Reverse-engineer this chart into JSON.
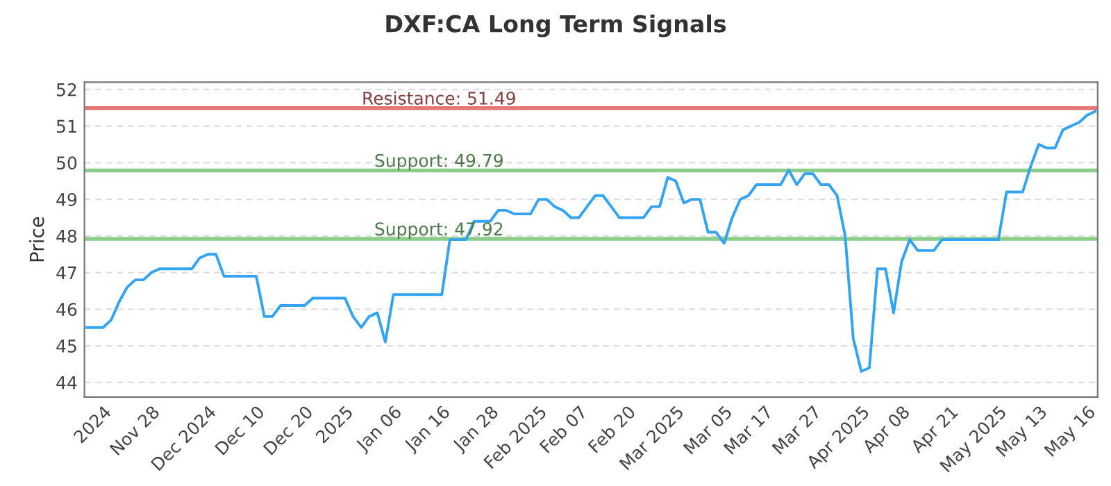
{
  "chart_data": {
    "type": "line",
    "title": "DXF:CA Long Term Signals",
    "ylabel": "Price",
    "categories": [
      null,
      null,
      "2024",
      null,
      null,
      null,
      null,
      null,
      "Nov 28",
      null,
      null,
      null,
      null,
      null,
      null,
      "Dec 2024",
      null,
      null,
      null,
      null,
      null,
      "Dec 10",
      null,
      null,
      null,
      null,
      null,
      "Dec 20",
      null,
      null,
      null,
      null,
      "2025",
      null,
      null,
      null,
      null,
      null,
      "Jan 06",
      null,
      null,
      null,
      null,
      null,
      "Jan 16",
      null,
      null,
      null,
      null,
      null,
      "Jan 28",
      null,
      null,
      null,
      null,
      null,
      "Feb 2025",
      null,
      null,
      null,
      null,
      "Feb 07",
      null,
      null,
      null,
      null,
      null,
      "Feb 20",
      null,
      null,
      null,
      null,
      null,
      "Mar 2025",
      null,
      null,
      null,
      null,
      null,
      "Mar 05",
      null,
      null,
      null,
      null,
      "Mar 17",
      null,
      null,
      null,
      null,
      null,
      "Mar 27",
      null,
      null,
      null,
      null,
      null,
      "Apr 2025",
      null,
      null,
      null,
      null,
      "Apr 08",
      null,
      null,
      null,
      null,
      null,
      "Apr 21",
      null,
      null,
      null,
      null,
      null,
      "May 2025",
      null,
      null,
      null,
      null,
      "May 13",
      null,
      null,
      null,
      null,
      null,
      "May 16",
      null
    ],
    "series": [
      {
        "color": "#33a3f4",
        "values": [
          45.5,
          45.5,
          45.5,
          45.7,
          46.2,
          46.6,
          46.8,
          46.8,
          47.0,
          47.1,
          47.1,
          47.1,
          47.1,
          47.1,
          47.4,
          47.5,
          47.5,
          46.9,
          46.9,
          46.9,
          46.9,
          46.9,
          45.8,
          45.8,
          46.1,
          46.1,
          46.1,
          46.1,
          46.3,
          46.3,
          46.3,
          46.3,
          46.3,
          45.8,
          45.5,
          45.8,
          45.9,
          45.1,
          46.4,
          46.4,
          46.4,
          46.4,
          46.4,
          46.4,
          46.4,
          47.9,
          47.9,
          47.9,
          48.4,
          48.4,
          48.4,
          48.7,
          48.7,
          48.6,
          48.6,
          48.6,
          49.0,
          49.0,
          48.8,
          48.7,
          48.5,
          48.5,
          48.8,
          49.1,
          49.1,
          48.8,
          48.5,
          48.5,
          48.5,
          48.5,
          48.8,
          48.8,
          49.6,
          49.5,
          48.9,
          49.0,
          49.0,
          48.1,
          48.1,
          47.8,
          48.5,
          49.0,
          49.1,
          49.4,
          49.4,
          49.4,
          49.4,
          49.8,
          49.4,
          49.7,
          49.7,
          49.4,
          49.4,
          49.1,
          48.0,
          45.2,
          44.3,
          44.4,
          47.1,
          47.1,
          45.9,
          47.3,
          47.9,
          47.6,
          47.6,
          47.6,
          47.9,
          47.9,
          47.9,
          47.9,
          47.9,
          47.9,
          47.9,
          47.9,
          49.2,
          49.2,
          49.2,
          49.9,
          50.5,
          50.4,
          50.4,
          50.9,
          51.0,
          51.1,
          51.3,
          51.4
        ]
      }
    ],
    "ylim": [
      43.6,
      52.2
    ],
    "yticks": [
      44,
      45,
      46,
      47,
      48,
      49,
      50,
      51,
      52
    ],
    "grid": "y",
    "marker": "none",
    "line_style": "solid",
    "ref_lines": [
      {
        "axis": "y",
        "value": 51.49,
        "label": "Resistance: 51.49",
        "color": "#e06666"
      },
      {
        "axis": "y",
        "value": 49.79,
        "label": "Support: 49.79",
        "color": "#7dc97d"
      },
      {
        "axis": "y",
        "value": 47.92,
        "label": "Support: 47.92",
        "color": "#7dc97d"
      }
    ]
  }
}
